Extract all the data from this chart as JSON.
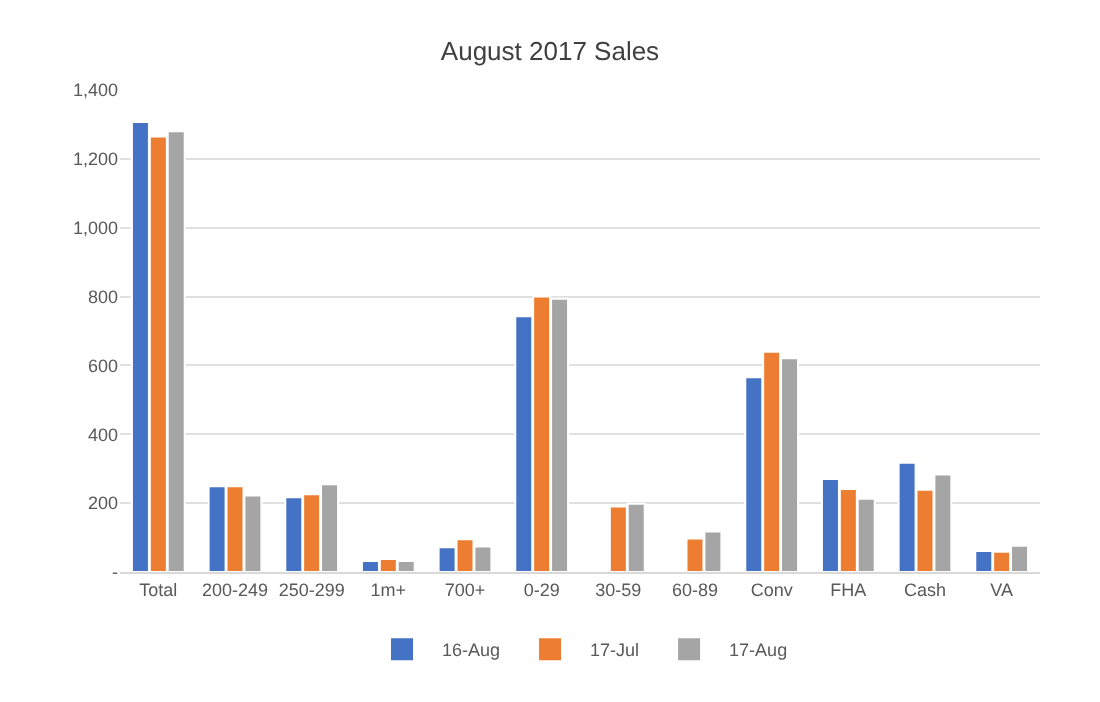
{
  "chart_data": {
    "type": "bar",
    "title": "August 2017 Sales",
    "categories": [
      "Total",
      "200-249",
      "250-299",
      "1m+",
      "700+",
      "0-29",
      "30-59",
      "60-89",
      "Conv",
      "FHA",
      "Cash",
      "VA"
    ],
    "series": [
      {
        "name": "16-Aug",
        "color": "#4472c4",
        "values": [
          1307,
          249,
          217,
          32,
          72,
          743,
          null,
          null,
          566,
          270,
          317,
          61
        ]
      },
      {
        "name": "17-Jul",
        "color": "#ed7d31",
        "values": [
          1265,
          249,
          226,
          38,
          95,
          800,
          190,
          97,
          640,
          241,
          239,
          59
        ]
      },
      {
        "name": "17-Aug",
        "color": "#a5a5a5",
        "values": [
          1280,
          222,
          255,
          32,
          74,
          794,
          198,
          118,
          621,
          213,
          283,
          76
        ]
      }
    ],
    "ylim": [
      0,
      1400
    ],
    "yticks": [
      {
        "value": 0,
        "label": "-"
      },
      {
        "value": 200,
        "label": "200"
      },
      {
        "value": 400,
        "label": "400"
      },
      {
        "value": 600,
        "label": "600"
      },
      {
        "value": 800,
        "label": "800"
      },
      {
        "value": 1000,
        "label": "1,000"
      },
      {
        "value": 1200,
        "label": "1,200"
      },
      {
        "value": 1400,
        "label": "1,400"
      }
    ],
    "grid": "y",
    "legend": "bottom"
  }
}
